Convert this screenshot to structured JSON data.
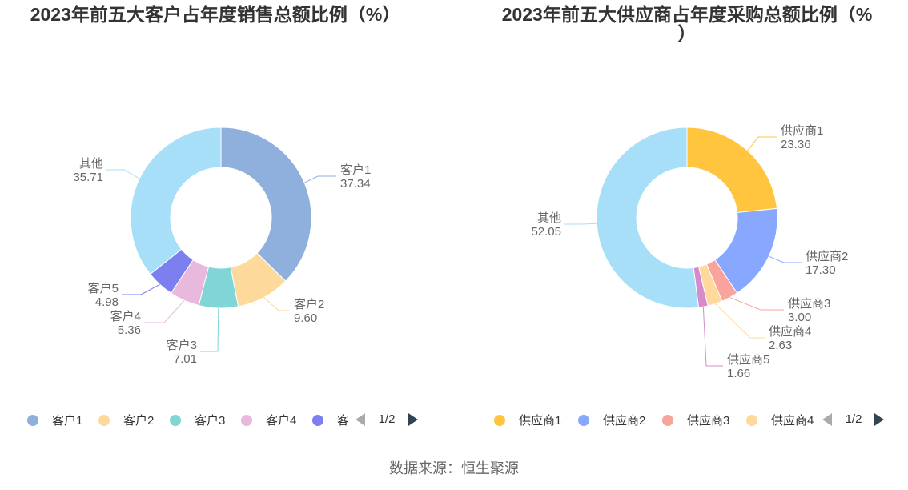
{
  "source_note": "数据来源：恒生聚源",
  "chart_data": [
    {
      "type": "pie",
      "variant": "donut",
      "title": "2023年前五大客户占年度销售总额比例（%）",
      "categories": [
        "客户1",
        "客户2",
        "客户3",
        "客户4",
        "客户5",
        "其他"
      ],
      "values": [
        37.34,
        9.6,
        7.01,
        5.36,
        4.98,
        35.71
      ],
      "value_labels": [
        "37.34",
        "9.60",
        "7.01",
        "5.36",
        "4.98",
        "35.71"
      ],
      "colors": [
        "#8fb0dc",
        "#fdd99b",
        "#80d5d7",
        "#e8b9dc",
        "#7b7ff0",
        "#a8dff8"
      ],
      "legend": {
        "position": "bottom",
        "page": "1/2"
      }
    },
    {
      "type": "pie",
      "variant": "donut",
      "title": "2023年前五大供应商占年度采购总额比例（%）",
      "categories": [
        "供应商1",
        "供应商2",
        "供应商3",
        "供应商4",
        "供应商5",
        "其他"
      ],
      "values": [
        23.36,
        17.3,
        3.0,
        2.63,
        1.66,
        52.05
      ],
      "value_labels": [
        "23.36",
        "17.30",
        "3.00",
        "2.63",
        "1.66",
        "52.05"
      ],
      "colors": [
        "#ffc53e",
        "#88a7ff",
        "#f8a39c",
        "#ffd89b",
        "#d58bca",
        "#a8dff8"
      ],
      "legend": {
        "position": "bottom",
        "page": "1/2"
      }
    }
  ]
}
